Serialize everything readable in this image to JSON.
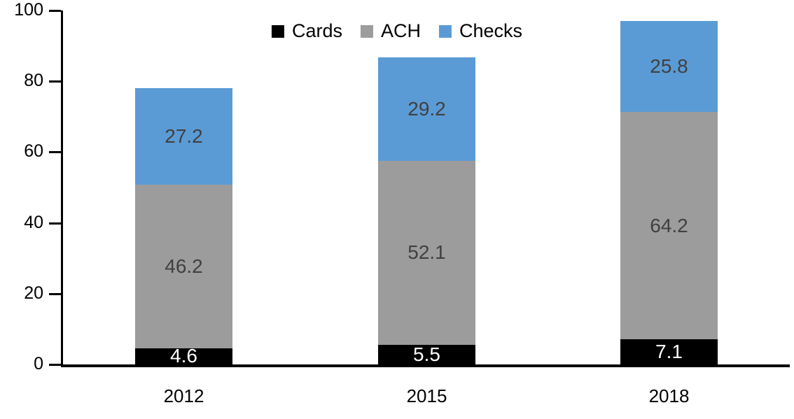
{
  "chart_data": {
    "type": "bar",
    "stacked": true,
    "title": "",
    "xlabel": "",
    "ylabel": "",
    "categories": [
      "2012",
      "2015",
      "2018"
    ],
    "series": [
      {
        "name": "Cards",
        "color": "#000000",
        "label_color": "#FFFFFF",
        "values": [
          4.6,
          5.5,
          7.1
        ]
      },
      {
        "name": "ACH",
        "color": "#9C9C9C",
        "label_color": "#404040",
        "values": [
          46.2,
          52.1,
          64.2
        ]
      },
      {
        "name": "Checks",
        "color": "#5B9BD5",
        "label_color": "#404040",
        "values": [
          27.2,
          29.2,
          25.8
        ]
      }
    ],
    "totals": [
      78.0,
      86.8,
      97.1
    ],
    "ylim": [
      0,
      100
    ],
    "yticks": [
      0,
      20,
      40,
      60,
      80,
      100
    ],
    "grid": false,
    "legend_position": "top",
    "axis_color": "#000000",
    "data_labels_shown": true
  }
}
